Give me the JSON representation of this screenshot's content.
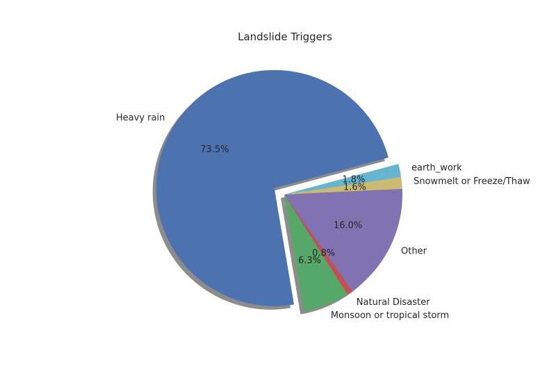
{
  "chart_data": {
    "type": "pie",
    "title": "Landslide Triggers",
    "slices": [
      {
        "label": "Heavy rain",
        "value": 73.5,
        "pct_label": "73.5%",
        "color": "#4c72b0",
        "exploded": true
      },
      {
        "label": "Monsoon or tropical storm",
        "value": 6.3,
        "pct_label": "6.3%",
        "color": "#55a868",
        "exploded": false
      },
      {
        "label": "Natural Disaster",
        "value": 0.8,
        "pct_label": "0.8%",
        "color": "#c44e52",
        "exploded": false
      },
      {
        "label": "Other",
        "value": 16.0,
        "pct_label": "16.0%",
        "color": "#8172b2",
        "exploded": false
      },
      {
        "label": "Snowmelt or Freeze/Thaw",
        "value": 1.6,
        "pct_label": "1.6%",
        "color": "#ccb974",
        "exploded": false
      },
      {
        "label": "earth_work",
        "value": 1.8,
        "pct_label": "1.8%",
        "color": "#64b5cd",
        "exploded": false
      }
    ],
    "start_angle_deg": 15,
    "direction": "counterclockwise",
    "shadow": true
  }
}
